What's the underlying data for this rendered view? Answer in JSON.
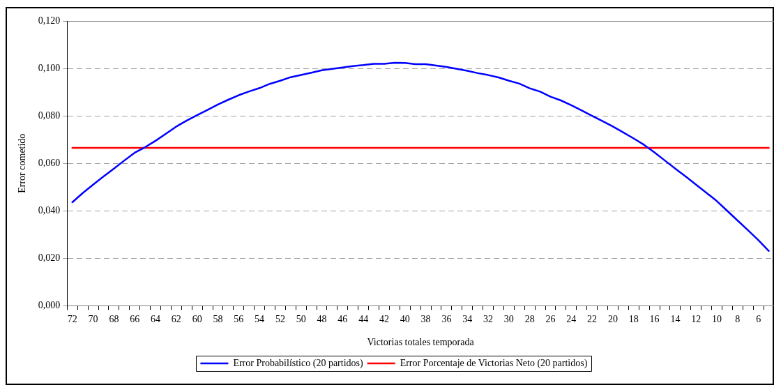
{
  "chart_data": {
    "type": "line",
    "xlabel": "Victorias totales temporada",
    "ylabel": "Error cometido",
    "categories": [
      "72",
      null,
      "70",
      null,
      "68",
      null,
      "66",
      null,
      "64",
      null,
      "62",
      null,
      "60",
      null,
      "58",
      null,
      "56",
      null,
      "54",
      null,
      "52",
      null,
      "50",
      null,
      "48",
      null,
      "46",
      null,
      "44",
      null,
      "42",
      null,
      "40",
      null,
      "38",
      null,
      "36",
      null,
      "34",
      null,
      "32",
      null,
      "30",
      null,
      "28",
      null,
      "26",
      null,
      "24",
      null,
      "22",
      null,
      "20",
      null,
      "18",
      null,
      "16",
      null,
      "14",
      null,
      "12",
      null,
      "10",
      null,
      "8",
      null,
      "6",
      null
    ],
    "series": [
      {
        "name": "Error Probabilístico (20 partidos)",
        "color": "#0000ff",
        "values": [
          0.0436,
          0.0475,
          0.051,
          0.0545,
          0.0578,
          0.0612,
          0.0645,
          0.0668,
          0.0695,
          0.0725,
          0.0755,
          0.078,
          0.0803,
          0.0825,
          0.0848,
          0.0868,
          0.0887,
          0.0903,
          0.0917,
          0.0935,
          0.0948,
          0.0963,
          0.0972,
          0.0982,
          0.0992,
          0.0998,
          0.1004,
          0.101,
          0.1014,
          0.1019,
          0.1019,
          0.1024,
          0.1023,
          0.1018,
          0.1018,
          0.1012,
          0.1006,
          0.0998,
          0.099,
          0.098,
          0.0972,
          0.0962,
          0.0948,
          0.0936,
          0.0916,
          0.0902,
          0.0881,
          0.0865,
          0.0845,
          0.0823,
          0.08,
          0.0778,
          0.0755,
          0.073,
          0.0705,
          0.0678,
          0.0646,
          0.0612,
          0.0578,
          0.0545,
          0.051,
          0.0476,
          0.0441,
          0.04,
          0.0359,
          0.0318,
          0.0276,
          0.0231
        ]
      },
      {
        "name": "Error Porcentaje de Victorias Neto (20 partidos)",
        "color": "#ff0000",
        "values": [
          0.0665,
          0.0665,
          0.0665,
          0.0665,
          0.0665,
          0.0665,
          0.0665,
          0.0665,
          0.0665,
          0.0665,
          0.0665,
          0.0665,
          0.0665,
          0.0665,
          0.0665,
          0.0665,
          0.0665,
          0.0665,
          0.0665,
          0.0665,
          0.0665,
          0.0665,
          0.0665,
          0.0665,
          0.0665,
          0.0665,
          0.0665,
          0.0665,
          0.0665,
          0.0665,
          0.0665,
          0.0665,
          0.0665,
          0.0665,
          0.0665,
          0.0665,
          0.0665,
          0.0665,
          0.0665,
          0.0665,
          0.0665,
          0.0665,
          0.0665,
          0.0665,
          0.0665,
          0.0665,
          0.0665,
          0.0665,
          0.0665,
          0.0665,
          0.0665,
          0.0665,
          0.0665,
          0.0665,
          0.0665,
          0.0665,
          0.0665,
          0.0665,
          0.0665,
          0.0665,
          0.0665,
          0.0665,
          0.0665,
          0.0665,
          0.0665,
          0.0665,
          0.0665,
          0.0665
        ]
      }
    ],
    "ylim": [
      0,
      0.12
    ],
    "yticks": [
      {
        "value": 0,
        "label": "0,000"
      },
      {
        "value": 0.02,
        "label": "0,020"
      },
      {
        "value": 0.04,
        "label": "0,040"
      },
      {
        "value": 0.06,
        "label": "0,060"
      },
      {
        "value": 0.08,
        "label": "0,080"
      },
      {
        "value": 0.1,
        "label": "0,100"
      },
      {
        "value": 0.12,
        "label": "0,120"
      }
    ],
    "grid": "y",
    "legend": "bottom",
    "marker": "none",
    "line_style": "solid"
  }
}
